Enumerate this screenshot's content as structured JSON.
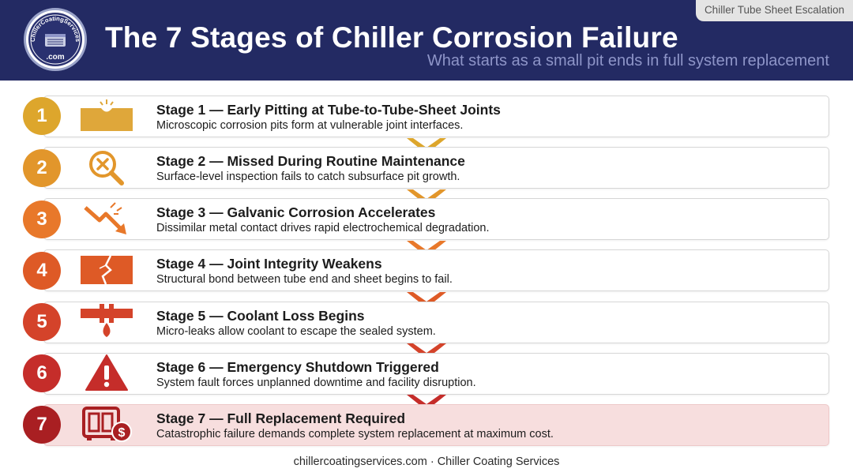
{
  "header": {
    "title": "The 7 Stages of Chiller Corrosion Failure",
    "subtitle": "What starts as a small pit ends in full system replacement",
    "tag": "Chiller Tube Sheet Escalation",
    "logo_top": "ChillerCoatingServices",
    "logo_bottom": ".com"
  },
  "stages": [
    {
      "number": "1",
      "title": "Stage 1 — Early Pitting at Tube-to-Tube-Sheet Joints",
      "desc": "Microscopic corrosion pits form at vulnerable joint interfaces.",
      "color": "#dda62c",
      "icon": "pitted-plate-icon"
    },
    {
      "number": "2",
      "title": "Stage 2 — Missed During Routine Maintenance",
      "desc": "Surface-level inspection fails to catch subsurface pit growth.",
      "color": "#e2962b",
      "icon": "magnifier-x-icon"
    },
    {
      "number": "3",
      "title": "Stage 3 — Galvanic Corrosion Accelerates",
      "desc": "Dissimilar metal contact drives rapid electrochemical degradation.",
      "color": "#e8782a",
      "icon": "zigzag-arrow-icon"
    },
    {
      "number": "4",
      "title": "Stage 4 — Joint Integrity Weakens",
      "desc": "Structural bond between tube end and sheet begins to fail.",
      "color": "#de5a26",
      "icon": "cracked-plate-icon"
    },
    {
      "number": "5",
      "title": "Stage 5 — Coolant Loss Begins",
      "desc": "Micro-leaks allow coolant to escape the sealed system.",
      "color": "#d4432a",
      "icon": "leaking-pipe-icon"
    },
    {
      "number": "6",
      "title": "Stage 6 — Emergency Shutdown Triggered",
      "desc": "System fault forces unplanned downtime and facility disruption.",
      "color": "#c52d2a",
      "icon": "warning-icon"
    },
    {
      "number": "7",
      "title": "Stage 7 — Full Replacement Required",
      "desc": "Catastrophic failure demands complete system replacement at maximum cost.",
      "color": "#a91f22",
      "icon": "chiller-cost-icon"
    }
  ],
  "footer": "chillercoatingservices.com · Chiller Coating Services"
}
